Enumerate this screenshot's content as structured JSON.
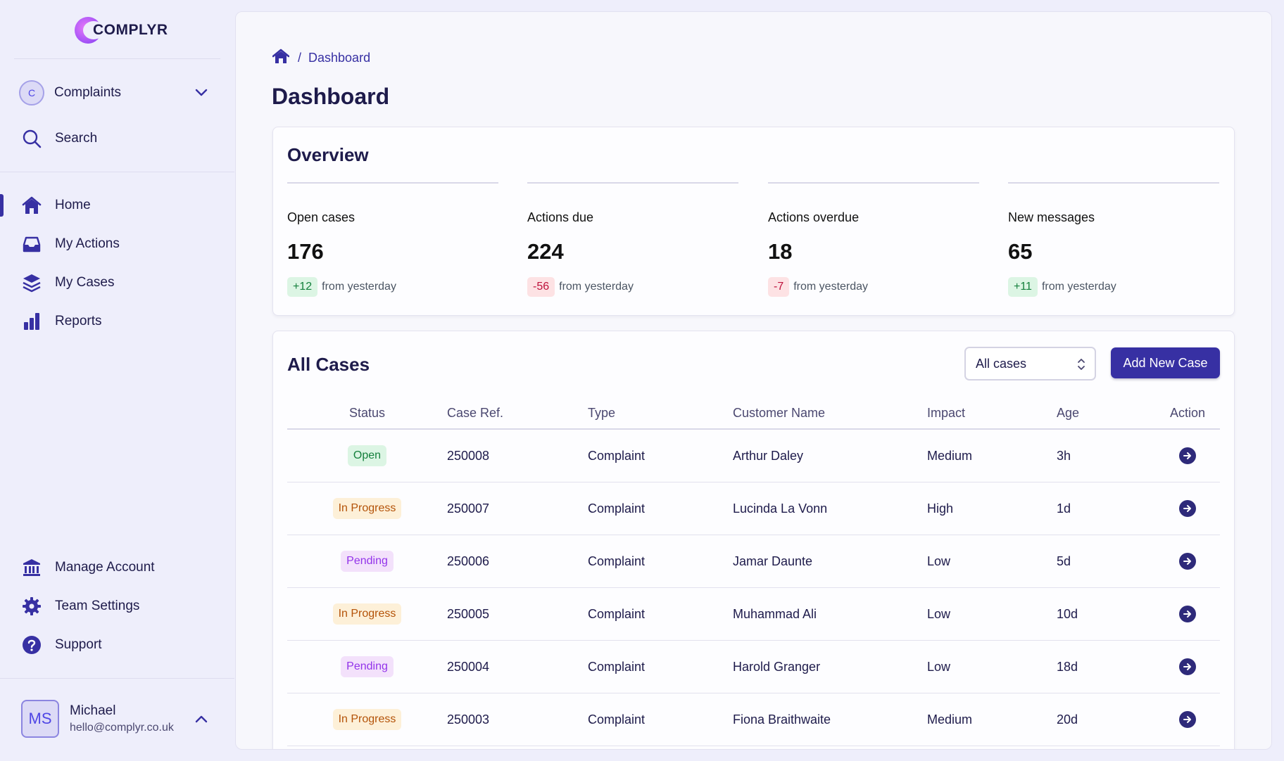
{
  "brand": {
    "name": "COMPLYR"
  },
  "workspace": {
    "initial": "C",
    "name": "Complaints"
  },
  "sidebar": {
    "search_label": "Search",
    "items": [
      {
        "label": "Home",
        "icon": "home-icon"
      },
      {
        "label": "My Actions",
        "icon": "inbox-icon"
      },
      {
        "label": "My Cases",
        "icon": "layers-icon"
      },
      {
        "label": "Reports",
        "icon": "bar-chart-icon"
      }
    ],
    "bottom_items": [
      {
        "label": "Manage Account",
        "icon": "bank-icon"
      },
      {
        "label": "Team Settings",
        "icon": "gear-icon"
      },
      {
        "label": "Support",
        "icon": "help-circle-icon"
      }
    ]
  },
  "user": {
    "initials": "MS",
    "name": "Michael",
    "email": "hello@complyr.co.uk"
  },
  "breadcrumb": {
    "separator": "/",
    "current": "Dashboard"
  },
  "page": {
    "title": "Dashboard"
  },
  "overview": {
    "title": "Overview",
    "stats": [
      {
        "label": "Open cases",
        "value": "176",
        "change": "+12",
        "direction": "up",
        "suffix": "from yesterday"
      },
      {
        "label": "Actions due",
        "value": "224",
        "change": "-56",
        "direction": "down",
        "suffix": "from yesterday"
      },
      {
        "label": "Actions overdue",
        "value": "18",
        "change": "-7",
        "direction": "down",
        "suffix": "from yesterday"
      },
      {
        "label": "New messages",
        "value": "65",
        "change": "+11",
        "direction": "up",
        "suffix": "from yesterday"
      }
    ]
  },
  "cases": {
    "title": "All Cases",
    "filter_value": "All cases",
    "add_button": "Add New Case",
    "columns": [
      "Status",
      "Case Ref.",
      "Type",
      "Customer Name",
      "Impact",
      "Age",
      "Action"
    ],
    "rows": [
      {
        "status": "Open",
        "status_kind": "open",
        "ref": "250008",
        "type": "Complaint",
        "customer": "Arthur Daley",
        "impact": "Medium",
        "age": "3h"
      },
      {
        "status": "In Progress",
        "status_kind": "progress",
        "ref": "250007",
        "type": "Complaint",
        "customer": "Lucinda La Vonn",
        "impact": "High",
        "age": "1d"
      },
      {
        "status": "Pending",
        "status_kind": "pending",
        "ref": "250006",
        "type": "Complaint",
        "customer": "Jamar Daunte",
        "impact": "Low",
        "age": "5d"
      },
      {
        "status": "In Progress",
        "status_kind": "progress",
        "ref": "250005",
        "type": "Complaint",
        "customer": "Muhammad Ali",
        "impact": "Low",
        "age": "10d"
      },
      {
        "status": "Pending",
        "status_kind": "pending",
        "ref": "250004",
        "type": "Complaint",
        "customer": "Harold Granger",
        "impact": "Low",
        "age": "18d"
      },
      {
        "status": "In Progress",
        "status_kind": "progress",
        "ref": "250003",
        "type": "Complaint",
        "customer": "Fiona Braithwaite",
        "impact": "Medium",
        "age": "20d"
      }
    ]
  },
  "colors": {
    "accent": "#3730a3",
    "background": "#eeeefb",
    "surface": "#fdfdff"
  }
}
